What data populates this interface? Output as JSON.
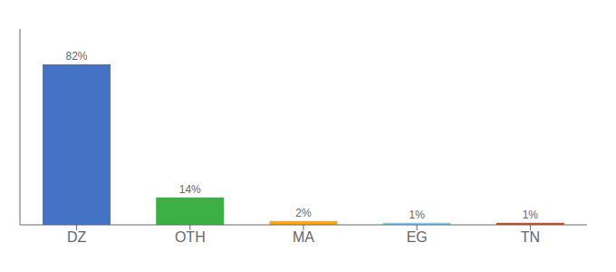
{
  "chart_data": {
    "type": "bar",
    "categories": [
      "DZ",
      "OTH",
      "MA",
      "EG",
      "TN"
    ],
    "values": [
      82,
      14,
      2,
      1,
      1
    ],
    "value_labels": [
      "82%",
      "14%",
      "2%",
      "1%",
      "1%"
    ],
    "colors": [
      "#4472c4",
      "#3cb044",
      "#f5a623",
      "#7ecbee",
      "#c0522a"
    ],
    "ylim": [
      0,
      100
    ],
    "data_labels": true,
    "tick_labels": "x"
  }
}
